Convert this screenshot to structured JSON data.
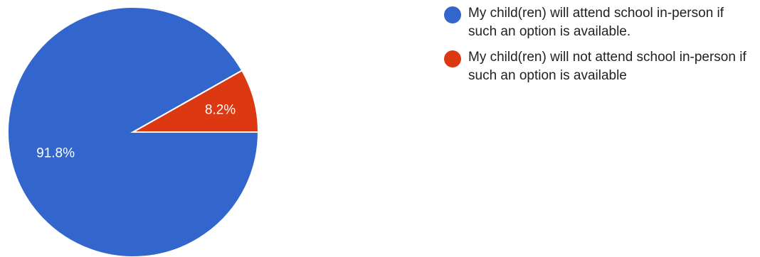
{
  "chart_data": {
    "type": "pie",
    "categories": [
      "My child(ren) will attend school in-person if such an option is available.",
      "My child(ren) will not attend school in-person if such an option is available"
    ],
    "values": [
      91.8,
      8.2
    ],
    "labels": [
      "91.8%",
      "8.2%"
    ],
    "colors": [
      "#3366cc",
      "#dc3912"
    ],
    "legend_position": "right"
  },
  "legend": {
    "items": [
      {
        "label": "My child(ren) will attend school in-person if such an option is available.",
        "color": "#3366cc"
      },
      {
        "label": "My child(ren) will not attend school in-person if such an option is available",
        "color": "#dc3912"
      }
    ]
  }
}
